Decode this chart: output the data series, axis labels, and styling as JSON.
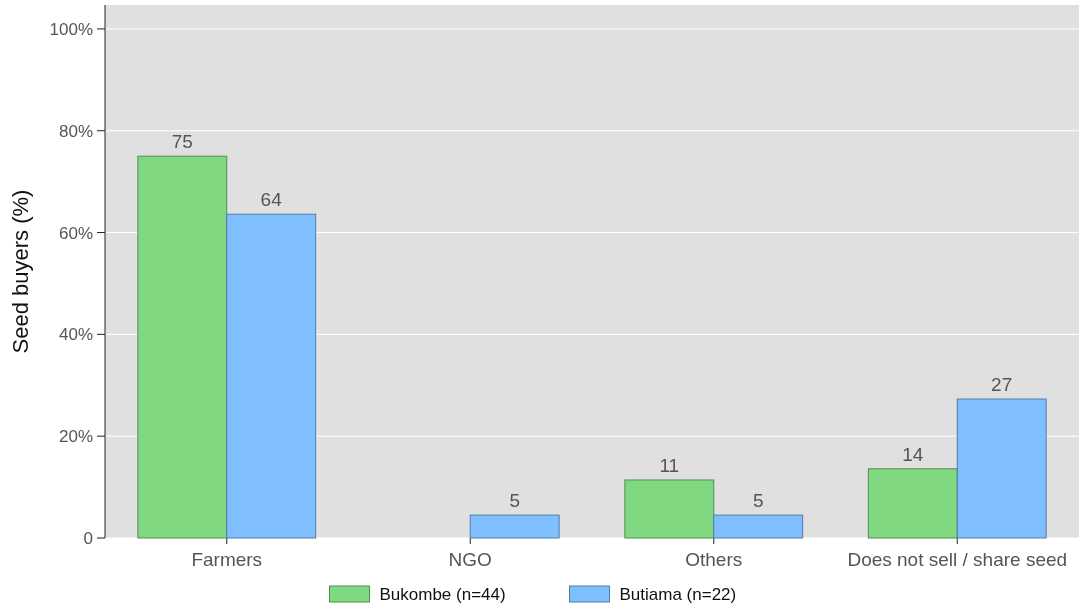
{
  "chart_data": {
    "type": "bar",
    "ylabel": "Seed buyers (%)",
    "categories": [
      "Farmers",
      "NGO",
      "Others",
      "Does not sell / share seed"
    ],
    "series": [
      {
        "name": "Bukombe (n=44)",
        "color": "#80d980",
        "values": [
          75,
          0,
          11.4,
          13.6
        ],
        "value_labels": [
          "75",
          null,
          "11",
          "14"
        ]
      },
      {
        "name": "Butiama (n=22)",
        "color": "#80bfff",
        "values": [
          63.6,
          4.5,
          4.5,
          27.3
        ],
        "value_labels": [
          "64",
          "5",
          "5",
          "27"
        ]
      }
    ],
    "ylim": [
      0,
      104.7
    ],
    "yticks": [
      {
        "value": 0,
        "label": "0"
      },
      {
        "value": 20,
        "label": "20%"
      },
      {
        "value": 40,
        "label": "40%"
      },
      {
        "value": 60,
        "label": "60%"
      },
      {
        "value": 80,
        "label": "80%"
      },
      {
        "value": 100,
        "label": "100%"
      }
    ],
    "grid": "y",
    "legend": "bottom"
  }
}
